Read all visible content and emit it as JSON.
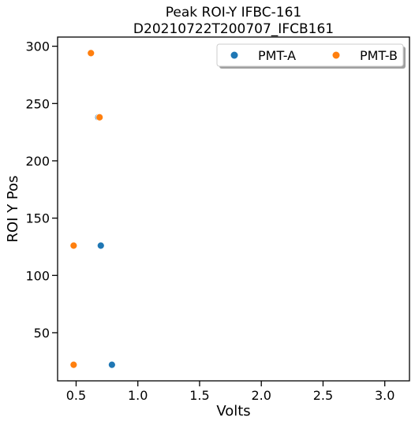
{
  "chart_data": {
    "type": "scatter",
    "title": "Peak ROI-Y IFBC-161",
    "subtitle": "D20210722T200707_IFCB161",
    "xlabel": "Volts",
    "ylabel": "ROI Y Pos",
    "xlim": [
      0.35,
      3.2
    ],
    "ylim": [
      8,
      308
    ],
    "xticks": [
      0.5,
      1.0,
      1.5,
      2.0,
      2.5,
      3.0
    ],
    "xtick_labels": [
      "0.5",
      "1.0",
      "1.5",
      "2.0",
      "2.5",
      "3.0"
    ],
    "yticks": [
      50,
      100,
      150,
      200,
      250,
      300
    ],
    "ytick_labels": [
      "50",
      "100",
      "150",
      "200",
      "250",
      "300"
    ],
    "grid": false,
    "legend_position": "top-right",
    "series": [
      {
        "name": "PMT-A",
        "color": "#1f77b4",
        "points": [
          {
            "x": 0.62,
            "y": 294
          },
          {
            "x": 0.68,
            "y": 238
          },
          {
            "x": 0.7,
            "y": 126
          },
          {
            "x": 0.79,
            "y": 22
          }
        ]
      },
      {
        "name": "PMT-B",
        "color": "#ff7f0e",
        "points": [
          {
            "x": 0.62,
            "y": 294
          },
          {
            "x": 0.69,
            "y": 238
          },
          {
            "x": 0.48,
            "y": 126
          },
          {
            "x": 0.48,
            "y": 22
          }
        ]
      }
    ]
  }
}
